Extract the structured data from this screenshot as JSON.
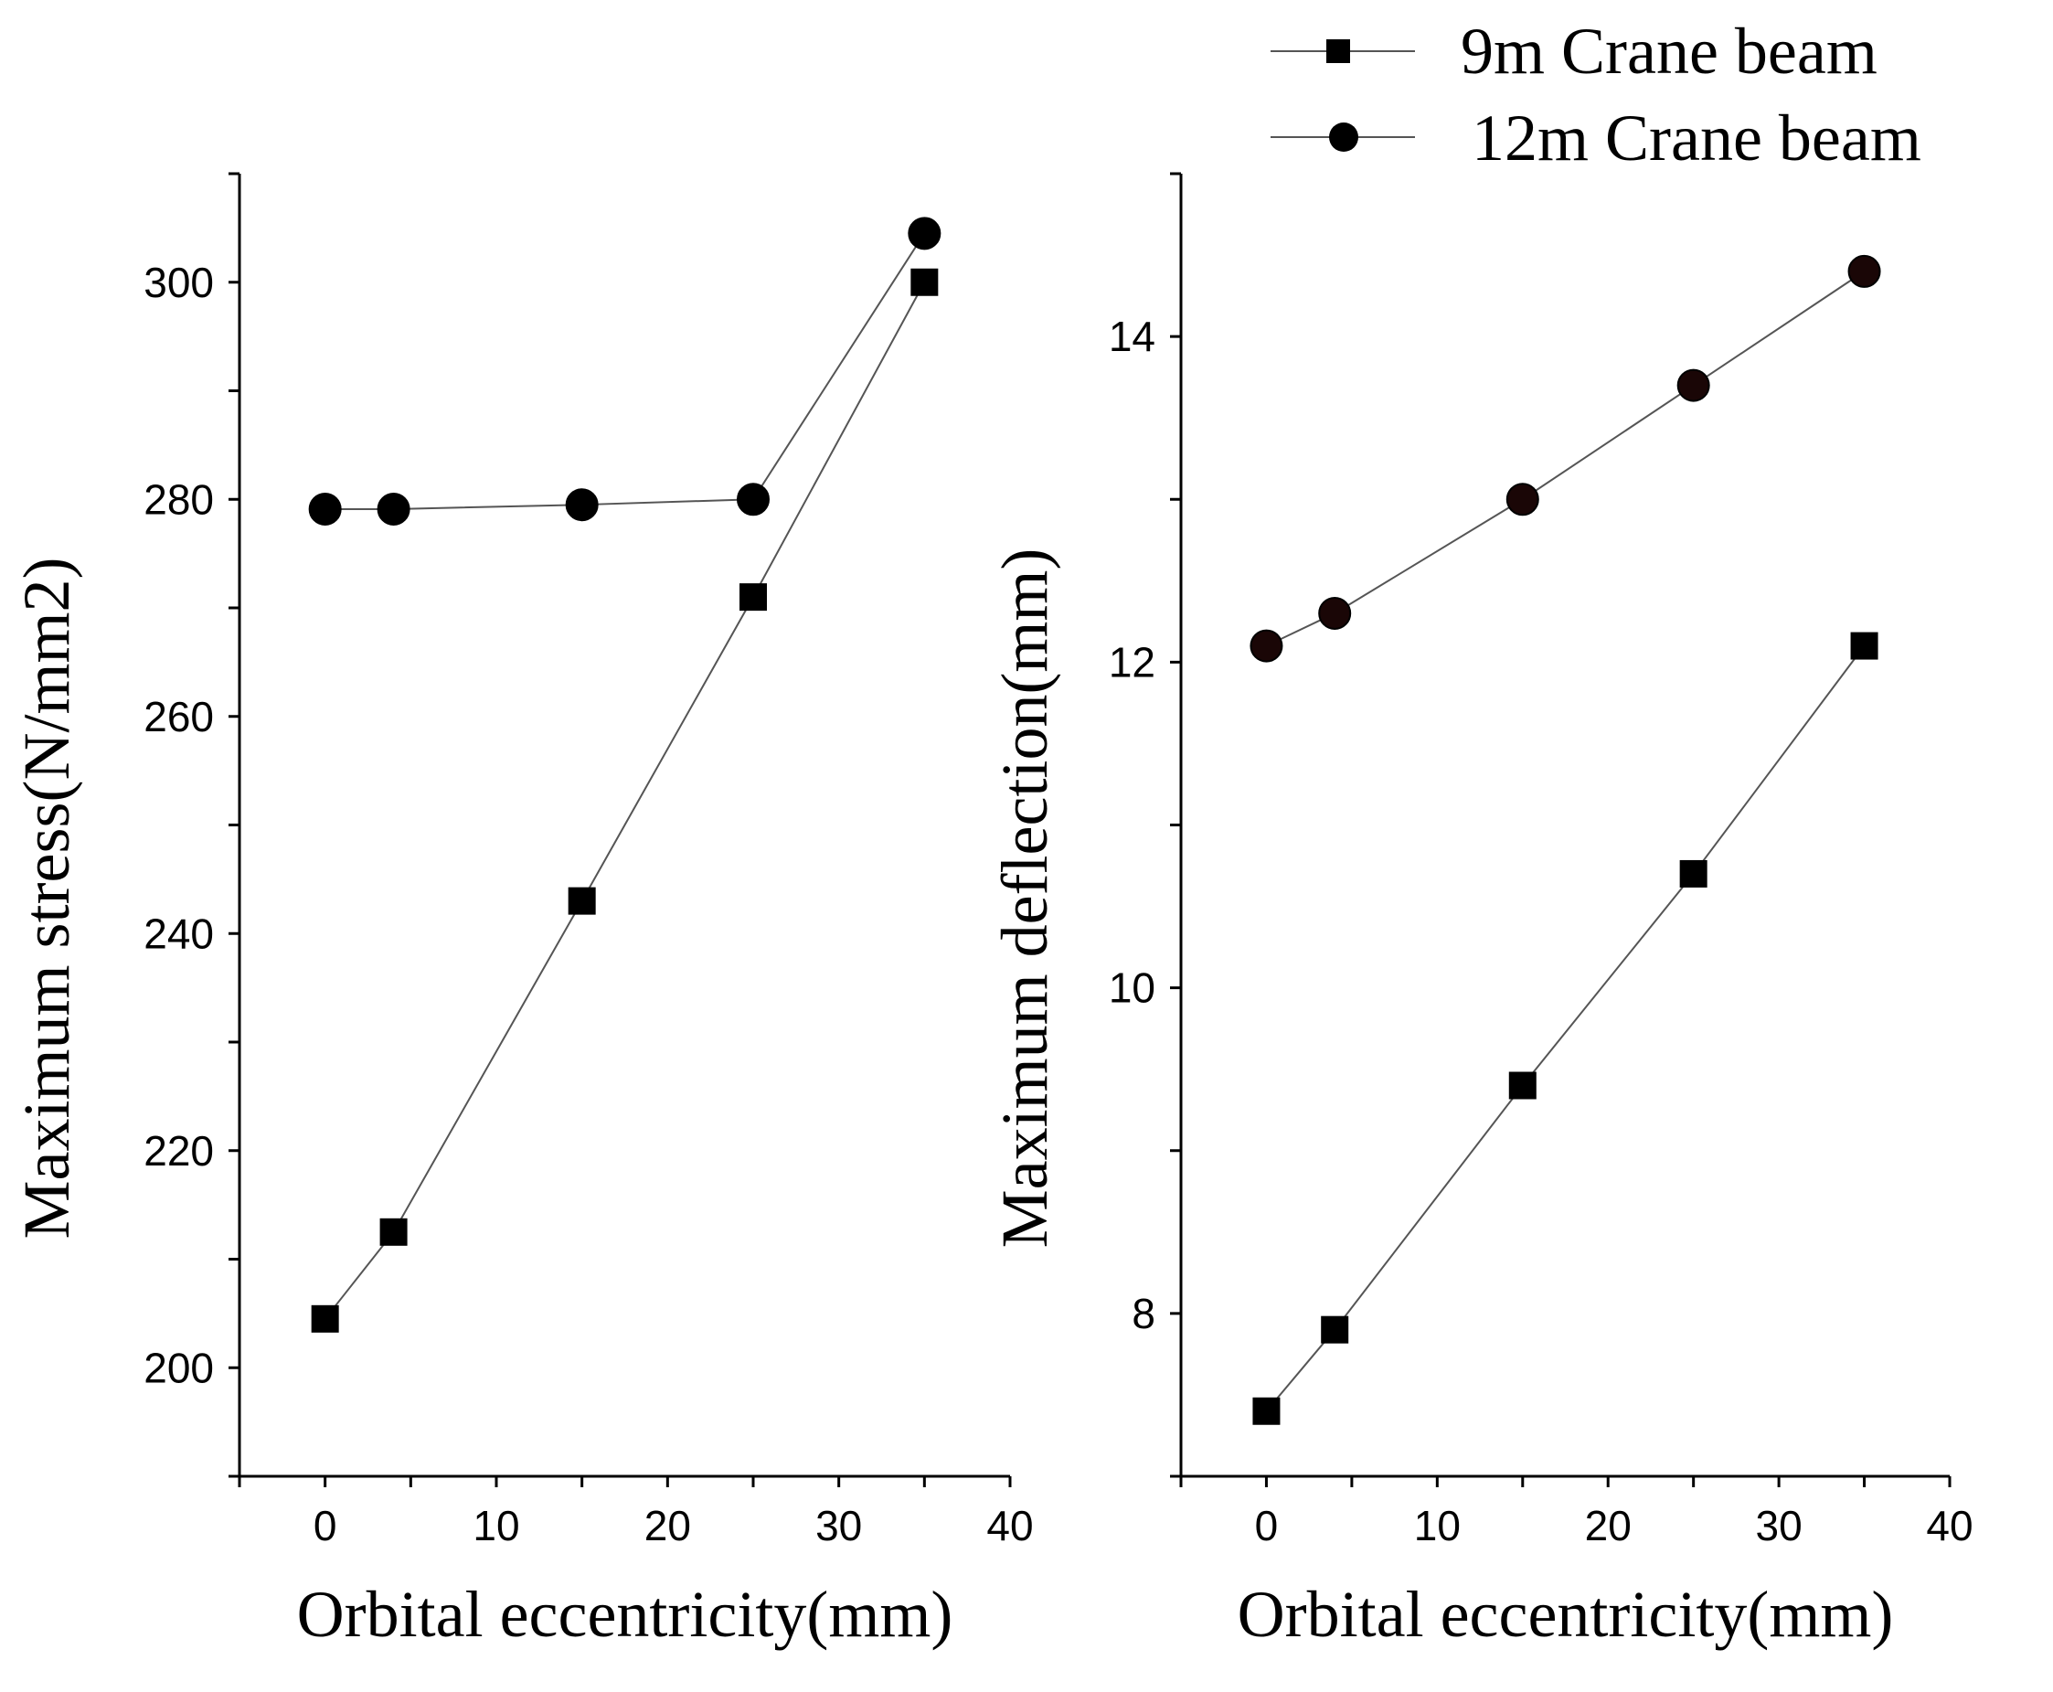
{
  "chart_data": [
    {
      "type": "line",
      "id": "stress",
      "xlabel": "Orbital eccentricity(mm)",
      "ylabel": "Maximum stress(N/mm2)",
      "xlim": [
        -5,
        40
      ],
      "ylim": [
        190,
        310
      ],
      "xticks": [
        0,
        10,
        20,
        30,
        40
      ],
      "yticks": [
        200,
        220,
        240,
        260,
        280,
        300
      ],
      "xtick_labels": [
        "0",
        "10",
        "20",
        "30",
        "40"
      ],
      "ytick_labels": [
        "200",
        "220",
        "240",
        "260",
        "280",
        "300"
      ],
      "series": [
        {
          "name": "9m Crane beam",
          "marker": "square",
          "x": [
            0,
            4,
            15,
            25,
            35
          ],
          "y": [
            204.5,
            212.5,
            243,
            271,
            300
          ]
        },
        {
          "name": "12m Crane beam",
          "marker": "circle",
          "x": [
            0,
            4,
            15,
            25,
            35
          ],
          "y": [
            279.1,
            279.1,
            279.5,
            280,
            304.5
          ]
        }
      ]
    },
    {
      "type": "line",
      "id": "deflection",
      "xlabel": "Orbital eccentricity(mm)",
      "ylabel": "Maximum deflection(mm)",
      "xlim": [
        -5,
        40
      ],
      "ylim": [
        7,
        15
      ],
      "xticks": [
        0,
        10,
        20,
        30,
        40
      ],
      "yticks": [
        8,
        10,
        12,
        14
      ],
      "xtick_labels": [
        "0",
        "10",
        "20",
        "30",
        "40"
      ],
      "ytick_labels": [
        "8",
        "10",
        "12",
        "14"
      ],
      "series": [
        {
          "name": "9m Crane beam",
          "marker": "square",
          "x": [
            0,
            4,
            15,
            25,
            35
          ],
          "y": [
            7.4,
            7.9,
            9.4,
            10.7,
            12.1
          ]
        },
        {
          "name": "12m Crane beam",
          "marker": "circle",
          "x": [
            0,
            4,
            15,
            25,
            35
          ],
          "y": [
            12.1,
            12.3,
            13.0,
            13.7,
            14.4
          ]
        }
      ]
    }
  ],
  "legend": {
    "items": [
      {
        "label": "9m Crane beam",
        "marker": "square"
      },
      {
        "label": "12m Crane beam",
        "marker": "circle"
      }
    ]
  },
  "colors": {
    "marker": "#000000",
    "line": "#555555",
    "circle_marker_right": "#1a0606"
  }
}
